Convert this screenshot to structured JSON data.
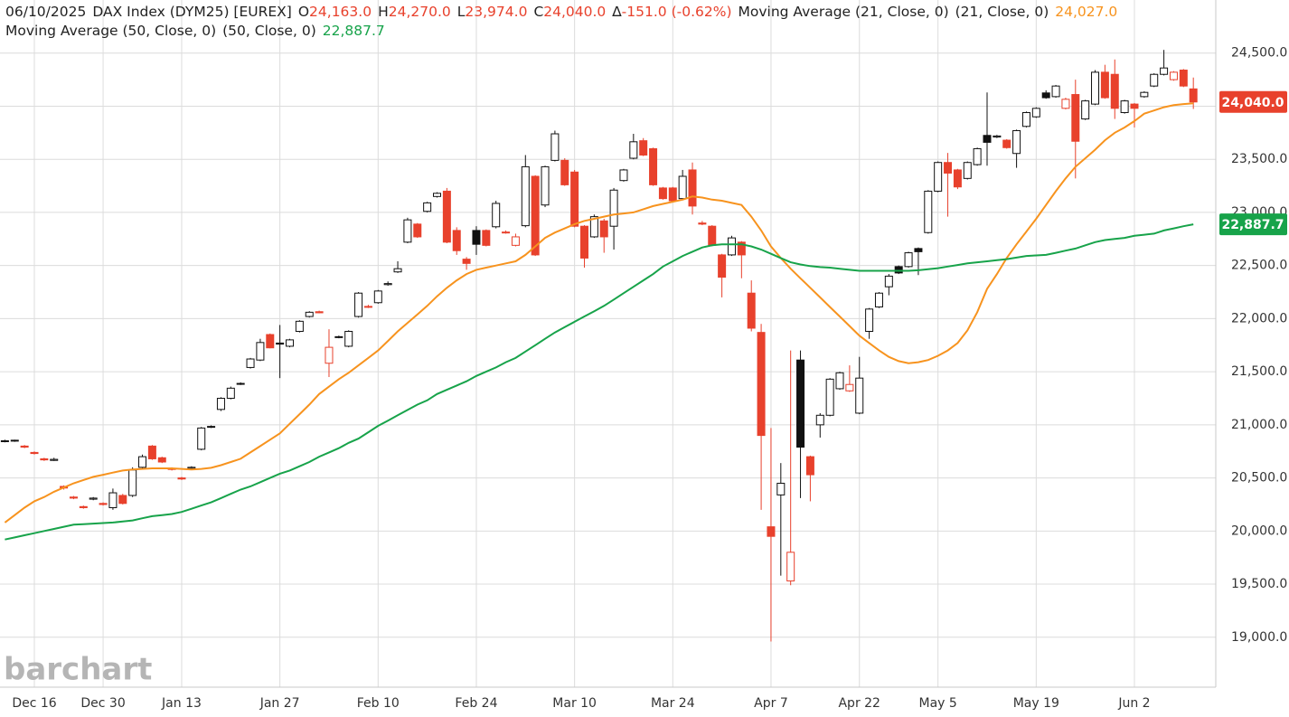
{
  "header": {
    "date": "06/10/2025",
    "symbol": "DAX Index (DYM25) [EUREX]",
    "ohlc": [
      {
        "key": "O",
        "value": "24,163.0"
      },
      {
        "key": "H",
        "value": "24,270.0"
      },
      {
        "key": "L",
        "value": "23,974.0"
      },
      {
        "key": "C",
        "value": "24,040.0"
      }
    ],
    "change_symbol": "∆",
    "change": "-151.0 (-0.62%)"
  },
  "chart_data": {
    "type": "candlestick",
    "watermark": "barchart",
    "categories": [
      "Dec 11",
      "Dec 12",
      "Dec 13",
      "Dec 16",
      "Dec 17",
      "Dec 18",
      "Dec 19",
      "Dec 20",
      "Dec 23",
      "Dec 27",
      "Dec 30",
      "Jan 2",
      "Jan 3",
      "Jan 6",
      "Jan 7",
      "Jan 8",
      "Jan 9",
      "Jan 10",
      "Jan 13",
      "Jan 14",
      "Jan 15",
      "Jan 16",
      "Jan 17",
      "Jan 20",
      "Jan 21",
      "Jan 22",
      "Jan 23",
      "Jan 24",
      "Jan 27",
      "Jan 28",
      "Jan 29",
      "Jan 30",
      "Jan 31",
      "Feb 3",
      "Feb 4",
      "Feb 5",
      "Feb 6",
      "Feb 7",
      "Feb 10",
      "Feb 11",
      "Feb 12",
      "Feb 13",
      "Feb 14",
      "Feb 17",
      "Feb 18",
      "Feb 19",
      "Feb 20",
      "Feb 21",
      "Feb 24",
      "Feb 25",
      "Feb 26",
      "Feb 27",
      "Feb 28",
      "Mar 3",
      "Mar 4",
      "Mar 5",
      "Mar 6",
      "Mar 7",
      "Mar 10",
      "Mar 11",
      "Mar 12",
      "Mar 13",
      "Mar 14",
      "Mar 17",
      "Mar 18",
      "Mar 19",
      "Mar 20",
      "Mar 21",
      "Mar 24",
      "Mar 25",
      "Mar 26",
      "Mar 27",
      "Mar 28",
      "Mar 31",
      "Apr 1",
      "Apr 2",
      "Apr 3",
      "Apr 4",
      "Apr 7",
      "Apr 8",
      "Apr 9",
      "Apr 10",
      "Apr 11",
      "Apr 14",
      "Apr 15",
      "Apr 16",
      "Apr 17",
      "Apr 22",
      "Apr 23",
      "Apr 24",
      "Apr 25",
      "Apr 28",
      "Apr 29",
      "Apr 30",
      "May 2",
      "May 5",
      "May 6",
      "May 7",
      "May 8",
      "May 9",
      "May 12",
      "May 13",
      "May 14",
      "May 15",
      "May 16",
      "May 19",
      "May 20",
      "May 21",
      "May 22",
      "May 23",
      "May 26",
      "May 27",
      "May 28",
      "May 29",
      "May 30",
      "Jun 2",
      "Jun 3",
      "Jun 4",
      "Jun 5",
      "Jun 6",
      "Jun 9",
      "Jun 10"
    ],
    "open": [
      20845,
      20850,
      20800,
      20740,
      20680,
      20665,
      20420,
      20320,
      20230,
      20300,
      20260,
      20220,
      20335,
      20335,
      20600,
      20800,
      20690,
      20590,
      20500,
      20590,
      20770,
      20980,
      21145,
      21250,
      21385,
      21540,
      21610,
      21850,
      21770,
      21740,
      21880,
      22020,
      22065,
      21580,
      21825,
      21740,
      22020,
      22115,
      22150,
      22320,
      22440,
      22720,
      22890,
      23010,
      23150,
      23200,
      22830,
      22560,
      22830,
      22830,
      22865,
      22815,
      22690,
      22875,
      23340,
      23070,
      23490,
      23490,
      23380,
      22870,
      22770,
      22920,
      22870,
      23300,
      23510,
      23675,
      23600,
      23230,
      23230,
      23130,
      23400,
      22900,
      22870,
      22600,
      22600,
      22720,
      22240,
      21870,
      20040,
      20340,
      19530,
      21610,
      20700,
      21000,
      21090,
      21340,
      21320,
      21110,
      21880,
      22110,
      22300,
      22490,
      22490,
      22660,
      22810,
      23200,
      23470,
      23400,
      23320,
      23450,
      23725,
      23710,
      23680,
      23555,
      23810,
      23900,
      24125,
      24090,
      23980,
      24110,
      23880,
      24020,
      24320,
      24300,
      23940,
      24020,
      24090,
      24190,
      24300,
      24250,
      24340,
      24163
    ],
    "high": [
      20860,
      20860,
      20810,
      20750,
      20690,
      20690,
      20430,
      20330,
      20240,
      20320,
      20270,
      20400,
      20350,
      20600,
      20720,
      20810,
      20700,
      20600,
      20510,
      20610,
      20980,
      20995,
      21260,
      21360,
      21400,
      21630,
      21810,
      21860,
      21940,
      21810,
      21985,
      22070,
      22075,
      21900,
      21840,
      21890,
      22250,
      22130,
      22270,
      22350,
      22540,
      22950,
      22900,
      23100,
      23190,
      23230,
      22860,
      22580,
      22870,
      22840,
      23110,
      22830,
      22800,
      23540,
      23350,
      23440,
      23770,
      23510,
      23400,
      22880,
      22980,
      22940,
      23230,
      23410,
      23740,
      23700,
      23610,
      23240,
      23240,
      23400,
      23470,
      22920,
      22880,
      22610,
      22780,
      22730,
      22360,
      21950,
      20970,
      20640,
      21700,
      21700,
      20710,
      21110,
      21440,
      21500,
      21560,
      21640,
      22100,
      22250,
      22420,
      22500,
      22630,
      22670,
      23210,
      23480,
      23560,
      23410,
      23480,
      23610,
      24130,
      23730,
      23690,
      23780,
      23950,
      23990,
      24150,
      24200,
      24080,
      24250,
      24060,
      24340,
      24390,
      24440,
      24060,
      24030,
      24140,
      24310,
      24530,
      24330,
      24350,
      24270
    ],
    "low": [
      20835,
      20840,
      20780,
      20720,
      20660,
      20660,
      20390,
      20300,
      20210,
      20290,
      20240,
      20200,
      20250,
      20320,
      20590,
      20670,
      20640,
      20570,
      20480,
      20580,
      20760,
      20970,
      21130,
      21240,
      21375,
      21530,
      21600,
      21720,
      21440,
      21730,
      21870,
      22010,
      22050,
      21450,
      21815,
      21730,
      22010,
      22100,
      22140,
      22310,
      22430,
      22710,
      22760,
      23000,
      23140,
      22710,
      22600,
      22460,
      22600,
      22680,
      22850,
      22800,
      22680,
      22860,
      22590,
      23050,
      23480,
      23250,
      22860,
      22480,
      22760,
      22620,
      22650,
      23290,
      23500,
      23530,
      23250,
      23120,
      23100,
      23120,
      22980,
      22880,
      22680,
      22200,
      22590,
      22380,
      21880,
      20200,
      18960,
      19580,
      19490,
      20310,
      20280,
      20880,
      21080,
      21330,
      21310,
      21100,
      21810,
      22100,
      22220,
      22420,
      22480,
      22410,
      22800,
      23190,
      22960,
      23220,
      23310,
      23440,
      23440,
      23700,
      23600,
      23420,
      23800,
      23890,
      24070,
      24080,
      23970,
      23320,
      23870,
      24010,
      24070,
      23880,
      23930,
      23800,
      24080,
      24180,
      24290,
      24240,
      24180,
      23974
    ],
    "close": [
      20850,
      20855,
      20790,
      20730,
      20670,
      20675,
      20405,
      20310,
      20220,
      20310,
      20250,
      20360,
      20260,
      20575,
      20700,
      20680,
      20650,
      20580,
      20490,
      20600,
      20970,
      20985,
      21250,
      21345,
      21390,
      21620,
      21775,
      21725,
      21760,
      21800,
      21975,
      22060,
      22055,
      21730,
      21830,
      21880,
      22240,
      22110,
      22260,
      22330,
      22470,
      22930,
      22770,
      23090,
      23180,
      22720,
      22640,
      22520,
      22700,
      22690,
      23085,
      22810,
      22770,
      23430,
      22600,
      23430,
      23740,
      23260,
      22870,
      22570,
      22960,
      22770,
      23210,
      23400,
      23665,
      23540,
      23260,
      23130,
      23110,
      23340,
      23060,
      22890,
      22690,
      22390,
      22760,
      22600,
      21910,
      20900,
      19950,
      20450,
      19800,
      20790,
      20530,
      21090,
      21430,
      21490,
      21380,
      21440,
      22090,
      22240,
      22400,
      22430,
      22620,
      22630,
      23200,
      23470,
      23370,
      23240,
      23470,
      23600,
      23660,
      23720,
      23610,
      23770,
      23940,
      23980,
      24080,
      24190,
      24065,
      23670,
      24050,
      24320,
      24080,
      23980,
      24050,
      23980,
      24130,
      24300,
      24360,
      24320,
      24190,
      24040
    ],
    "up_color": "#111111",
    "down_color": "#e8412c",
    "series": [
      {
        "name": "Moving Average (21, Close, 0)",
        "params": "(21, Close, 0)",
        "color": "#f7931e",
        "value_label": "24,027.0",
        "values": [
          20080,
          20150,
          20220,
          20280,
          20320,
          20370,
          20410,
          20450,
          20480,
          20510,
          20530,
          20550,
          20570,
          20580,
          20585,
          20590,
          20590,
          20590,
          20585,
          20580,
          20585,
          20595,
          20620,
          20650,
          20680,
          20740,
          20800,
          20860,
          20920,
          21010,
          21100,
          21190,
          21290,
          21360,
          21430,
          21490,
          21560,
          21630,
          21700,
          21790,
          21880,
          21960,
          22040,
          22120,
          22210,
          22290,
          22360,
          22420,
          22460,
          22480,
          22500,
          22520,
          22540,
          22600,
          22680,
          22760,
          22810,
          22850,
          22890,
          22920,
          22940,
          22960,
          22980,
          22990,
          23000,
          23030,
          23060,
          23080,
          23100,
          23120,
          23150,
          23140,
          23120,
          23110,
          23090,
          23070,
          22960,
          22830,
          22680,
          22570,
          22470,
          22380,
          22290,
          22200,
          22110,
          22020,
          21930,
          21840,
          21770,
          21700,
          21640,
          21600,
          21580,
          21590,
          21610,
          21650,
          21700,
          21770,
          21890,
          22060,
          22280,
          22420,
          22570,
          22700,
          22820,
          22940,
          23070,
          23200,
          23320,
          23430,
          23510,
          23590,
          23680,
          23750,
          23800,
          23860,
          23930,
          23960,
          23990,
          24010,
          24020,
          24027
        ]
      },
      {
        "name": "Moving Average (50, Close, 0)",
        "params": "(50, Close, 0)",
        "color": "#17a34a",
        "value_label": "22,887.7",
        "values": [
          19920,
          19940,
          19960,
          19980,
          20000,
          20020,
          20040,
          20060,
          20065,
          20070,
          20075,
          20080,
          20090,
          20100,
          20120,
          20140,
          20150,
          20160,
          20180,
          20210,
          20240,
          20270,
          20310,
          20350,
          20390,
          20420,
          20460,
          20500,
          20540,
          20570,
          20610,
          20650,
          20700,
          20740,
          20780,
          20830,
          20870,
          20930,
          20990,
          21040,
          21090,
          21140,
          21190,
          21230,
          21290,
          21330,
          21370,
          21410,
          21460,
          21500,
          21540,
          21590,
          21630,
          21690,
          21750,
          21810,
          21870,
          21920,
          21970,
          22020,
          22070,
          22120,
          22180,
          22240,
          22300,
          22360,
          22420,
          22490,
          22540,
          22590,
          22630,
          22670,
          22690,
          22700,
          22700,
          22700,
          22680,
          22650,
          22610,
          22570,
          22530,
          22510,
          22495,
          22485,
          22480,
          22470,
          22460,
          22450,
          22450,
          22450,
          22450,
          22450,
          22450,
          22455,
          22465,
          22475,
          22490,
          22505,
          22520,
          22530,
          22540,
          22550,
          22560,
          22575,
          22590,
          22595,
          22600,
          22620,
          22640,
          22660,
          22690,
          22720,
          22740,
          22750,
          22760,
          22780,
          22790,
          22800,
          22830,
          22850,
          22870,
          22887.7
        ]
      }
    ],
    "last_tag": {
      "value": 24040,
      "label": "24,040.0",
      "color": "#e8412c"
    },
    "ylim": [
      18530,
      25000
    ],
    "yticks": [
      {
        "value": 19000,
        "label": "19,000.0"
      },
      {
        "value": 19500,
        "label": "19,500.0"
      },
      {
        "value": 20000,
        "label": "20,000.0"
      },
      {
        "value": 20500,
        "label": "20,500.0"
      },
      {
        "value": 21000,
        "label": "21,000.0"
      },
      {
        "value": 21500,
        "label": "21,500.0"
      },
      {
        "value": 22000,
        "label": "22,000.0"
      },
      {
        "value": 22500,
        "label": "22,500.0"
      },
      {
        "value": 23000,
        "label": "23,000.0"
      },
      {
        "value": 23500,
        "label": "23,500.0"
      },
      {
        "value": 24000,
        "label": "24,000.0"
      },
      {
        "value": 24500,
        "label": "24,500.0"
      }
    ],
    "xticks": [
      "Dec 16",
      "Dec 30",
      "Jan 13",
      "Jan 27",
      "Feb 10",
      "Feb 24",
      "Mar 10",
      "Mar 24",
      "Apr 7",
      "Apr 22",
      "May 5",
      "May 19",
      "Jun 2"
    ],
    "grid": true
  }
}
